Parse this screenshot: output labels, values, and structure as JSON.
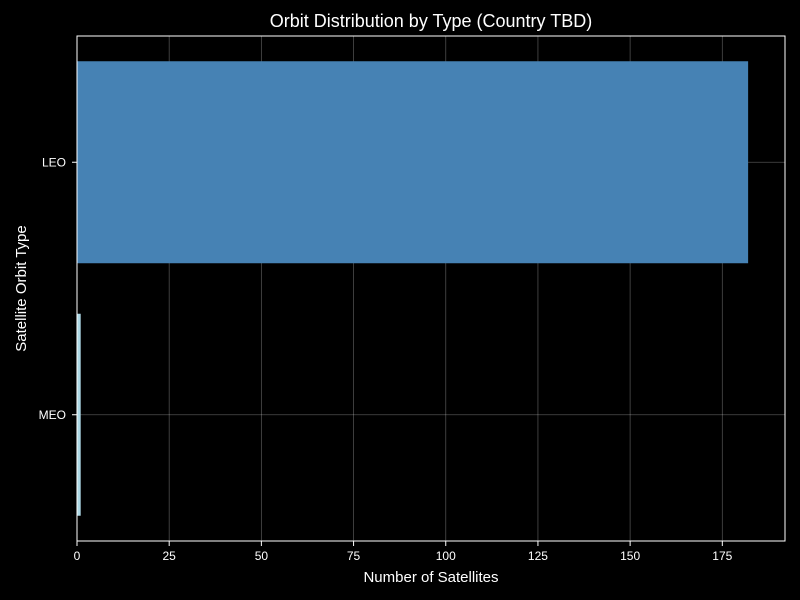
{
  "chart_data": {
    "type": "bar",
    "orientation": "horizontal",
    "title": "Orbit Distribution by Type (Country TBD)",
    "xlabel": "Number of Satellites",
    "ylabel": "Satellite Orbit Type",
    "categories": [
      "LEO",
      "MEO"
    ],
    "values": [
      182,
      1
    ],
    "colors": [
      "#4682b4",
      "#add8e6"
    ],
    "xlim": [
      0,
      192
    ],
    "xticks": [
      0,
      25,
      50,
      75,
      100,
      125,
      150,
      175
    ],
    "grid": true,
    "background": "#000000",
    "text_color": "#ffffff"
  }
}
